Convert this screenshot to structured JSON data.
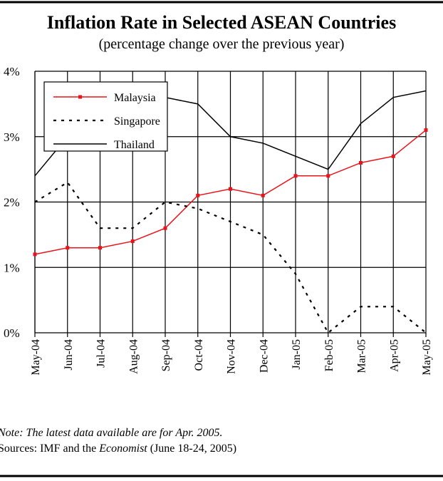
{
  "chart_data": {
    "type": "line",
    "title": "Inflation Rate in Selected ASEAN Countries",
    "subtitle": "(percentage change over the previous year)",
    "categories": [
      "May-04",
      "Jun-04",
      "Jul-04",
      "Aug-04",
      "Sep-04",
      "Oct-04",
      "Nov-04",
      "Dec-04",
      "Jan-05",
      "Feb-05",
      "Mar-05",
      "Apr-05",
      "May-05"
    ],
    "series": [
      {
        "name": "Malaysia",
        "color": "#e8141b",
        "values": [
          1.2,
          1.3,
          1.3,
          1.4,
          1.6,
          2.1,
          2.2,
          2.1,
          2.4,
          2.4,
          2.6,
          2.7,
          3.1
        ]
      },
      {
        "name": "Singapore",
        "color": "#000000",
        "values": [
          2.0,
          2.3,
          1.6,
          1.6,
          2.0,
          1.9,
          1.7,
          1.5,
          0.9,
          0.0,
          0.4,
          0.4,
          0.0
        ]
      },
      {
        "name": "Thailand",
        "color": "#000000",
        "values": [
          2.4,
          3.0,
          3.1,
          3.1,
          3.6,
          3.5,
          3.0,
          2.9,
          2.7,
          2.5,
          3.2,
          3.6,
          3.7
        ]
      }
    ],
    "ylim": [
      0,
      4
    ],
    "yticks": [
      {
        "value": 0,
        "label": "0%"
      },
      {
        "value": 1,
        "label": "1%"
      },
      {
        "value": 2,
        "label": "2%"
      },
      {
        "value": 3,
        "label": "3%"
      },
      {
        "value": 4,
        "label": "4%"
      }
    ],
    "grid": true,
    "note": "Note: The latest data available are for Apr. 2005.",
    "sources": [
      "Sources: IMF and the ",
      "Economist",
      " (June 18-24, 2005)"
    ]
  }
}
